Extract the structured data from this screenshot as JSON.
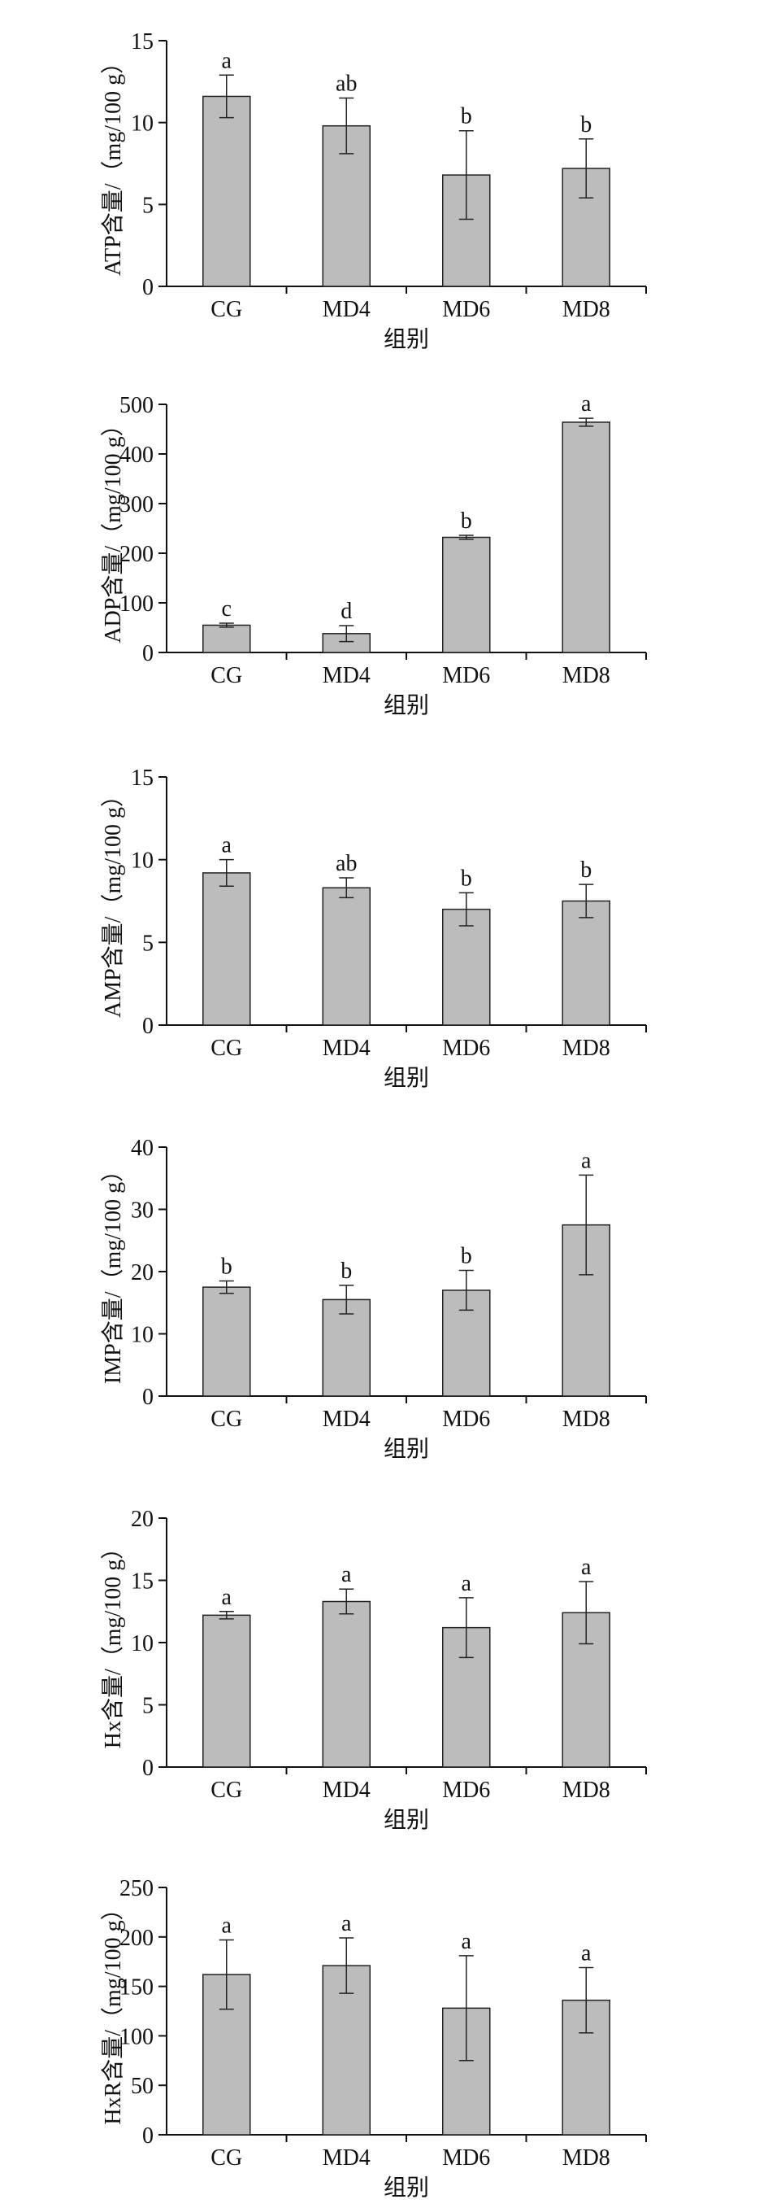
{
  "chart_data": [
    {
      "type": "bar",
      "categories": [
        "CG",
        "MD4",
        "MD6",
        "MD8"
      ],
      "values": [
        11.6,
        9.8,
        6.8,
        7.2
      ],
      "errors": [
        1.3,
        1.7,
        2.7,
        1.8
      ],
      "sig_labels": [
        "a",
        "ab",
        "b",
        "b"
      ],
      "ylabel": "ATP含量/（mg/100 g）",
      "xlabel": "组别",
      "ylim": [
        0,
        15
      ],
      "yticks": [
        0,
        5,
        10,
        15
      ],
      "grid": false
    },
    {
      "type": "bar",
      "categories": [
        "CG",
        "MD4",
        "MD6",
        "MD8"
      ],
      "values": [
        55,
        38,
        232,
        464
      ],
      "errors": [
        4,
        16,
        4,
        8
      ],
      "sig_labels": [
        "c",
        "d",
        "b",
        "a"
      ],
      "ylabel": "ADP含量/（mg/100 g）",
      "xlabel": "组别",
      "ylim": [
        0,
        500
      ],
      "yticks": [
        0,
        100,
        200,
        300,
        400,
        500
      ],
      "grid": false
    },
    {
      "type": "bar",
      "categories": [
        "CG",
        "MD4",
        "MD6",
        "MD8"
      ],
      "values": [
        9.2,
        8.3,
        7.0,
        7.5
      ],
      "errors": [
        0.8,
        0.6,
        1.0,
        1.0
      ],
      "sig_labels": [
        "a",
        "ab",
        "b",
        "b"
      ],
      "ylabel": "AMP含量/（mg/100 g）",
      "xlabel": "组别",
      "ylim": [
        0,
        15
      ],
      "yticks": [
        0,
        5,
        10,
        15
      ],
      "grid": false
    },
    {
      "type": "bar",
      "categories": [
        "CG",
        "MD4",
        "MD6",
        "MD8"
      ],
      "values": [
        17.5,
        15.5,
        17.0,
        27.5
      ],
      "errors": [
        1.0,
        2.3,
        3.2,
        8.0
      ],
      "sig_labels": [
        "b",
        "b",
        "b",
        "a"
      ],
      "ylabel": "IMP含量/（mg/100 g）",
      "xlabel": "组别",
      "ylim": [
        0,
        40
      ],
      "yticks": [
        0,
        10,
        20,
        30,
        40
      ],
      "grid": false
    },
    {
      "type": "bar",
      "categories": [
        "CG",
        "MD4",
        "MD6",
        "MD8"
      ],
      "values": [
        12.2,
        13.3,
        11.2,
        12.4
      ],
      "errors": [
        0.3,
        1.0,
        2.4,
        2.5
      ],
      "sig_labels": [
        "a",
        "a",
        "a",
        "a"
      ],
      "ylabel": "Hx含量/（mg/100 g）",
      "xlabel": "组别",
      "ylim": [
        0,
        20
      ],
      "yticks": [
        0,
        5,
        10,
        15,
        20
      ],
      "grid": false
    },
    {
      "type": "bar",
      "categories": [
        "CG",
        "MD4",
        "MD6",
        "MD8"
      ],
      "values": [
        162,
        171,
        128,
        136
      ],
      "errors": [
        35,
        28,
        53,
        33
      ],
      "sig_labels": [
        "a",
        "a",
        "a",
        "a"
      ],
      "ylabel": "HxR含量/（mg/100 g）",
      "xlabel": "组别",
      "ylim": [
        0,
        250
      ],
      "yticks": [
        0,
        50,
        100,
        150,
        200,
        250
      ],
      "grid": false
    }
  ]
}
